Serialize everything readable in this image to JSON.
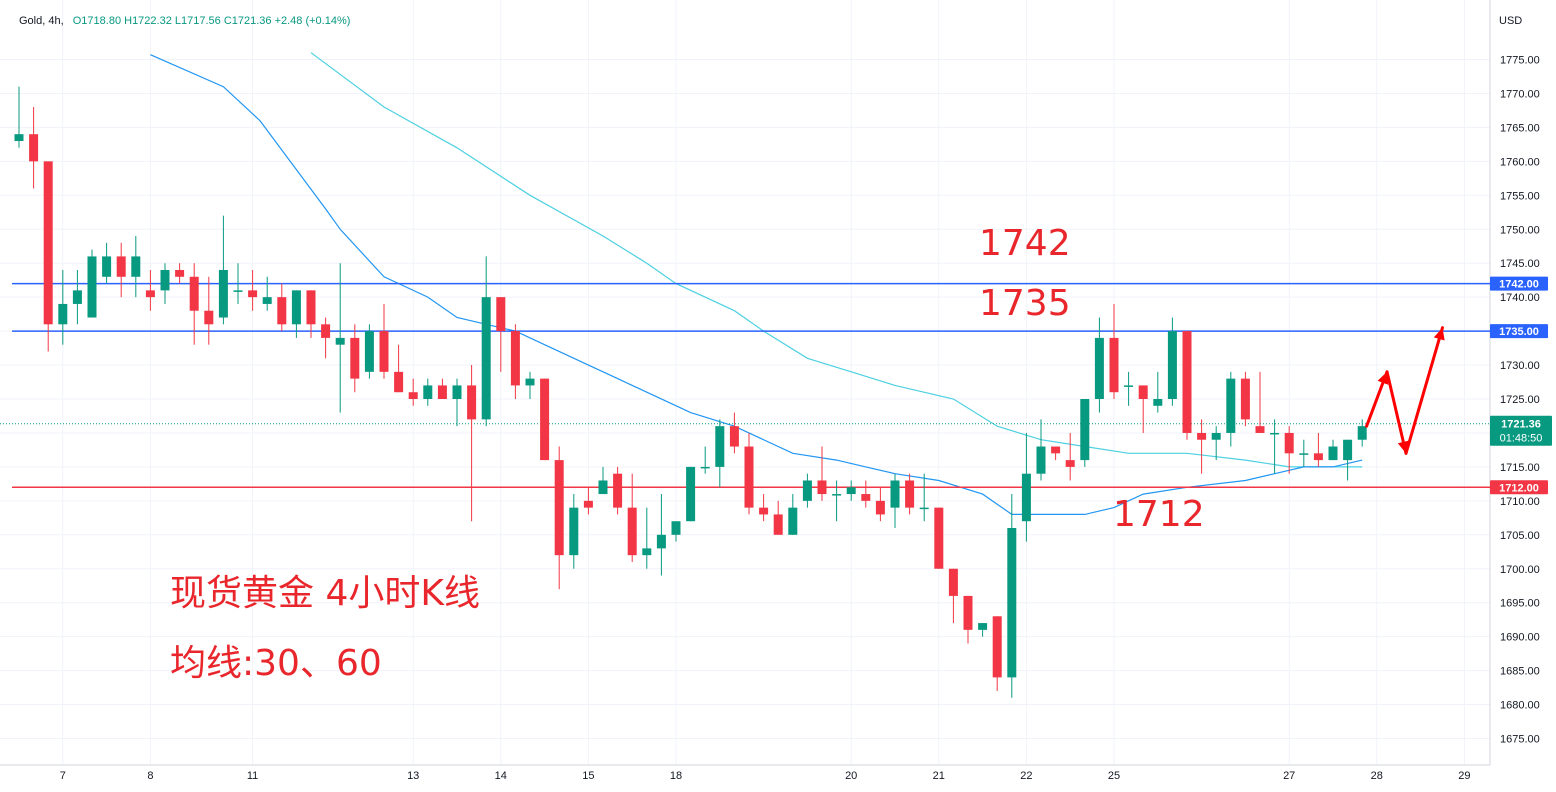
{
  "legend": {
    "symbol": "Gold",
    "interval": "4h",
    "ohlc_text": "O1718.80 H1722.32 L1717.56 C1721.36 +2.48 (+0.14%)"
  },
  "currency": "USD",
  "annotations": {
    "level_1742": "1742",
    "level_1735": "1735",
    "level_1712": "1712",
    "title_line1": "现货黄金 4小时K线",
    "title_line2": "均线:30、60"
  },
  "price_tags": {
    "r1": "1742.00",
    "r2": "1735.00",
    "s1": "1712.00",
    "current": "1721.36",
    "countdown": "01:48:50"
  },
  "colors": {
    "up": "#089981",
    "down": "#f23645",
    "resistance": "#2962ff",
    "support": "#f23645",
    "ma30": "#2196f3",
    "ma60": "#4dd0e1",
    "annotation": "#e8262b"
  },
  "chart_data": {
    "type": "candlestick",
    "timeframe": "4h",
    "y_axis": {
      "ticks": [
        1775,
        1770,
        1765,
        1760,
        1755,
        1750,
        1745,
        1740,
        1735,
        1730,
        1725,
        1720,
        1715,
        1710,
        1705,
        1700,
        1695,
        1690,
        1685,
        1680,
        1675
      ],
      "tick_labels": [
        "1775.00",
        "1770.00",
        "1765.00",
        "1760.00",
        "1755.00",
        "1750.00",
        "1745.00",
        "1740.00",
        "1735.00",
        "1730.00",
        "1725.00",
        "1720.00",
        "1715.00",
        "1710.00",
        "1705.00",
        "1700.00",
        "1695.00",
        "1690.00",
        "1685.00",
        "1680.00",
        "1675.00"
      ],
      "range": [
        1671.5,
        1778.5
      ]
    },
    "x_axis": {
      "labels": [
        {
          "text": "7",
          "bar": 3
        },
        {
          "text": "8",
          "bar": 9
        },
        {
          "text": "11",
          "bar": 16
        },
        {
          "text": "13",
          "bar": 27
        },
        {
          "text": "14",
          "bar": 33
        },
        {
          "text": "15",
          "bar": 39
        },
        {
          "text": "18",
          "bar": 45
        },
        {
          "text": "20",
          "bar": 57
        },
        {
          "text": "21",
          "bar": 63
        },
        {
          "text": "22",
          "bar": 69
        },
        {
          "text": "25",
          "bar": 75
        },
        {
          "text": "27",
          "bar": 87
        },
        {
          "text": "28",
          "bar": 93
        },
        {
          "text": "29",
          "bar": 99
        }
      ]
    },
    "candles": [
      [
        1763,
        1771,
        1762,
        1764
      ],
      [
        1764,
        1768,
        1756,
        1760
      ],
      [
        1760,
        1760,
        1732,
        1736
      ],
      [
        1736,
        1744,
        1733,
        1739
      ],
      [
        1739,
        1744,
        1736,
        1741
      ],
      [
        1737,
        1747,
        1737,
        1746
      ],
      [
        1743,
        1748,
        1742,
        1746
      ],
      [
        1746,
        1748,
        1740,
        1743
      ],
      [
        1743,
        1749,
        1740,
        1746
      ],
      [
        1741,
        1744,
        1738,
        1740
      ],
      [
        1741,
        1745,
        1739,
        1744
      ],
      [
        1744,
        1745,
        1742,
        1743
      ],
      [
        1743,
        1745,
        1733,
        1738
      ],
      [
        1738,
        1743,
        1733,
        1736
      ],
      [
        1737,
        1752,
        1736,
        1744
      ],
      [
        1741,
        1745,
        1739,
        1741
      ],
      [
        1741,
        1744,
        1738,
        1740
      ],
      [
        1739,
        1743,
        1738,
        1740
      ],
      [
        1740,
        1742,
        1735,
        1736
      ],
      [
        1736,
        1741,
        1734,
        1741
      ],
      [
        1741,
        1741,
        1734,
        1736
      ],
      [
        1736,
        1737,
        1731,
        1734
      ],
      [
        1733,
        1745,
        1723,
        1734
      ],
      [
        1734,
        1736,
        1726,
        1728
      ],
      [
        1729,
        1736,
        1728,
        1735
      ],
      [
        1735,
        1739,
        1728,
        1729
      ],
      [
        1729,
        1733,
        1726,
        1726
      ],
      [
        1726,
        1728,
        1724,
        1725
      ],
      [
        1725,
        1728,
        1724,
        1727
      ],
      [
        1727,
        1728,
        1725,
        1725
      ],
      [
        1725,
        1728,
        1721,
        1727
      ],
      [
        1727,
        1730,
        1707,
        1722
      ],
      [
        1722,
        1746,
        1721,
        1740
      ],
      [
        1740,
        1740,
        1729,
        1735
      ],
      [
        1735,
        1736,
        1725,
        1727
      ],
      [
        1727,
        1729,
        1725,
        1728
      ],
      [
        1728,
        1728,
        1716,
        1716
      ],
      [
        1716,
        1718,
        1697,
        1702
      ],
      [
        1702,
        1711,
        1700,
        1709
      ],
      [
        1710,
        1712,
        1708,
        1709
      ],
      [
        1711,
        1715,
        1711,
        1713
      ],
      [
        1714,
        1715,
        1708,
        1709
      ],
      [
        1709,
        1714,
        1701,
        1702
      ],
      [
        1702,
        1709,
        1700,
        1703
      ],
      [
        1703,
        1711,
        1699,
        1705
      ],
      [
        1705,
        1707,
        1704,
        1707
      ],
      [
        1707,
        1715,
        1707,
        1715
      ],
      [
        1715,
        1718,
        1714,
        1715
      ],
      [
        1715,
        1722,
        1712,
        1721
      ],
      [
        1721,
        1723,
        1717,
        1718
      ],
      [
        1718,
        1720,
        1708,
        1709
      ],
      [
        1709,
        1711,
        1707,
        1708
      ],
      [
        1708,
        1710,
        1705,
        1705
      ],
      [
        1705,
        1711,
        1705,
        1709
      ],
      [
        1710,
        1714,
        1709,
        1713
      ],
      [
        1713,
        1718,
        1710,
        1711
      ],
      [
        1711,
        1713,
        1707,
        1711
      ],
      [
        1711,
        1713,
        1710,
        1712
      ],
      [
        1711,
        1713,
        1709,
        1710
      ],
      [
        1710,
        1712,
        1707,
        1708
      ],
      [
        1709,
        1714,
        1706,
        1713
      ],
      [
        1713,
        1714,
        1708,
        1709
      ],
      [
        1709,
        1714,
        1707,
        1709
      ],
      [
        1709,
        1709,
        1700,
        1700
      ],
      [
        1700,
        1700,
        1692,
        1696
      ],
      [
        1696,
        1696,
        1689,
        1691
      ],
      [
        1691,
        1692,
        1690,
        1692
      ],
      [
        1693,
        1693,
        1682,
        1684
      ],
      [
        1684,
        1711,
        1681,
        1706
      ],
      [
        1707,
        1720,
        1704,
        1714
      ],
      [
        1714,
        1722,
        1713,
        1718
      ],
      [
        1718,
        1718,
        1716,
        1717
      ],
      [
        1716,
        1720,
        1713,
        1715
      ],
      [
        1716,
        1725,
        1715,
        1725
      ],
      [
        1725,
        1737,
        1723,
        1734
      ],
      [
        1734,
        1739,
        1725,
        1726
      ],
      [
        1727,
        1729,
        1724,
        1727
      ],
      [
        1727,
        1727,
        1720,
        1725
      ],
      [
        1724,
        1729,
        1723,
        1725
      ],
      [
        1725,
        1737,
        1724,
        1735
      ],
      [
        1735,
        1735,
        1719,
        1720
      ],
      [
        1720,
        1722,
        1714,
        1719
      ],
      [
        1719,
        1721,
        1716,
        1720
      ],
      [
        1720,
        1729,
        1718,
        1728
      ],
      [
        1728,
        1729,
        1721,
        1722
      ],
      [
        1721,
        1729,
        1720,
        1720
      ],
      [
        1720,
        1722,
        1714,
        1720
      ],
      [
        1720,
        1721,
        1714,
        1717
      ],
      [
        1717,
        1719,
        1715,
        1717
      ],
      [
        1717,
        1720,
        1715,
        1716
      ],
      [
        1716,
        1719,
        1716,
        1718
      ],
      [
        1716,
        1719,
        1713,
        1719
      ],
      [
        1719,
        1722,
        1718,
        1721
      ]
    ],
    "ma30": [
      [
        9,
        1775.7
      ],
      [
        14,
        1771
      ],
      [
        16.5,
        1766
      ],
      [
        21,
        1753
      ],
      [
        22,
        1750
      ],
      [
        25,
        1743
      ],
      [
        28,
        1740
      ],
      [
        30,
        1737
      ],
      [
        32,
        1736
      ],
      [
        34,
        1735
      ],
      [
        36,
        1733
      ],
      [
        39,
        1730
      ],
      [
        41,
        1728
      ],
      [
        43,
        1726
      ],
      [
        46,
        1723
      ],
      [
        49,
        1721
      ],
      [
        53,
        1717
      ],
      [
        56,
        1716
      ],
      [
        58,
        1715
      ],
      [
        60,
        1714
      ],
      [
        63,
        1713
      ],
      [
        66,
        1711
      ],
      [
        68,
        1708
      ],
      [
        69,
        1708
      ],
      [
        71,
        1708
      ],
      [
        73,
        1708
      ],
      [
        75,
        1709
      ],
      [
        77,
        1711
      ],
      [
        80,
        1712
      ],
      [
        84,
        1713
      ],
      [
        86,
        1714
      ],
      [
        88,
        1715
      ],
      [
        90,
        1715
      ],
      [
        92,
        1716
      ]
    ],
    "ma60": [
      [
        20,
        1776
      ],
      [
        25,
        1768
      ],
      [
        30,
        1762
      ],
      [
        35,
        1755
      ],
      [
        40,
        1749
      ],
      [
        43,
        1745
      ],
      [
        45,
        1742
      ],
      [
        49,
        1738
      ],
      [
        51,
        1735
      ],
      [
        54,
        1731
      ],
      [
        57,
        1729
      ],
      [
        60,
        1727
      ],
      [
        64,
        1725
      ],
      [
        67,
        1721
      ],
      [
        70,
        1719
      ],
      [
        73,
        1718
      ],
      [
        76,
        1717
      ],
      [
        80,
        1717
      ],
      [
        84,
        1716
      ],
      [
        87,
        1715
      ],
      [
        90,
        1715
      ],
      [
        92,
        1715
      ]
    ],
    "horizontal_levels": [
      {
        "name": "resistance-1742",
        "value": 1742
      },
      {
        "name": "resistance-1735",
        "value": 1735
      },
      {
        "name": "support-1712",
        "value": 1712
      }
    ],
    "current_price": 1721.36,
    "projection_arrows": [
      [
        [
          92.3,
          1721
        ],
        [
          93.7,
          1729
        ]
      ],
      [
        [
          93.7,
          1729
        ],
        [
          95,
          1717
        ]
      ],
      [
        [
          95,
          1717
        ],
        [
          97.5,
          1735.5
        ]
      ]
    ]
  }
}
